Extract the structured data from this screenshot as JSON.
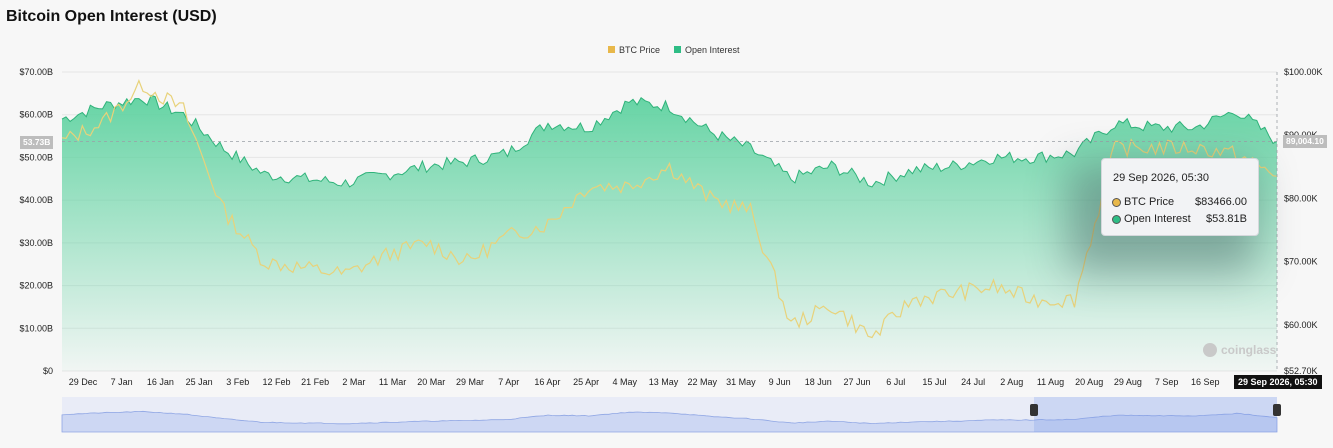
{
  "title": "Bitcoin Open Interest (USD)",
  "legend": [
    {
      "label": "BTC Price",
      "color": "#e8b84a"
    },
    {
      "label": "Open Interest",
      "color": "#2ebd85"
    }
  ],
  "left_axis_ticks": [
    "$70.00B",
    "$60.00B",
    "$50.00B",
    "$40.00B",
    "$30.00B",
    "$20.00B",
    "$10.00B",
    "$0"
  ],
  "right_axis_ticks": [
    "$100.00K",
    "$90.00K",
    "$80.00K",
    "$70.00K",
    "$60.00K",
    "$52.70K"
  ],
  "x_ticks": [
    "29 Dec",
    "7 Jan",
    "16 Jan",
    "25 Jan",
    "3 Feb",
    "12 Feb",
    "21 Feb",
    "2 Mar",
    "11 Mar",
    "20 Mar",
    "29 Mar",
    "7 Apr",
    "16 Apr",
    "25 Apr",
    "4 May",
    "13 May",
    "22 May",
    "31 May",
    "9 Jun",
    "18 Jun",
    "27 Jun",
    "6 Jul",
    "15 Jul",
    "24 Jul",
    "2 Aug",
    "11 Aug",
    "20 Aug",
    "29 Aug",
    "7 Sep",
    "16 Sep"
  ],
  "crosshair": {
    "left_value": "53.73B",
    "right_value": "89,004.10",
    "time": "29 Sep 2026, 05:30"
  },
  "tooltip": {
    "time": "29 Sep 2026, 05:30",
    "rows": [
      {
        "label": "BTC Price",
        "value": "$83466.00",
        "color": "#e8b84a"
      },
      {
        "label": "Open Interest",
        "value": "$53.81B",
        "color": "#2ebd85"
      }
    ]
  },
  "watermark": "coinglass",
  "navigator": {
    "selection_start_fraction": 0.8,
    "selection_end_fraction": 1.0
  },
  "chart_data": {
    "type": "area",
    "title": "Bitcoin Open Interest (USD)",
    "x": [
      "29 Dec",
      "7 Jan",
      "16 Jan",
      "25 Jan",
      "3 Feb",
      "12 Feb",
      "21 Feb",
      "2 Mar",
      "11 Mar",
      "20 Mar",
      "29 Mar",
      "7 Apr",
      "16 Apr",
      "25 Apr",
      "4 May",
      "13 May",
      "22 May",
      "31 May",
      "9 Jun",
      "18 Jun",
      "27 Jun",
      "6 Jul",
      "15 Jul",
      "24 Jul",
      "2 Aug",
      "11 Aug",
      "20 Aug",
      "29 Aug",
      "7 Sep",
      "16 Sep",
      "29 Sep"
    ],
    "series": [
      {
        "name": "Open Interest",
        "axis": "left",
        "values": [
          59,
          62,
          64,
          60,
          52,
          46,
          45,
          44,
          46,
          48,
          49,
          51,
          58,
          57,
          63,
          62,
          56,
          52,
          45,
          48,
          44,
          47,
          48,
          50,
          50,
          51,
          58,
          57,
          57,
          61,
          53.8
        ]
      },
      {
        "name": "BTC Price",
        "axis": "right",
        "values": [
          89,
          92,
          98,
          94,
          78,
          70,
          69,
          68,
          71,
          73,
          70,
          74,
          76,
          82,
          82,
          85,
          80,
          78,
          60,
          63,
          58,
          64,
          65,
          66,
          64,
          64,
          88,
          88,
          88,
          87,
          83.5
        ]
      }
    ],
    "y_left_lim": [
      0,
      70
    ],
    "y_right_lim": [
      52.7,
      100
    ],
    "y_left_unit": "$B",
    "y_right_unit": "$K",
    "legend_position": "top-center",
    "grid": true
  }
}
